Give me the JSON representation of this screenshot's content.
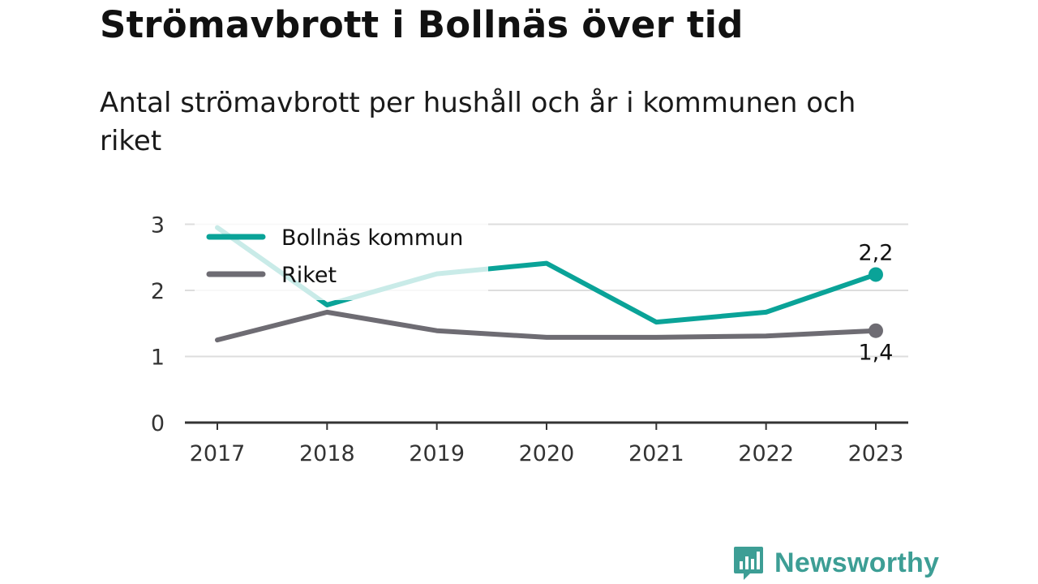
{
  "title": "Strömavbrott i Bollnäs över tid",
  "subtitle": "Antal strömavbrott per hushåll och år i kommunen och riket",
  "brand": {
    "name": "Newsworthy",
    "icon": "newsworthy-logo-icon",
    "color": "#3d9e95"
  },
  "chart_data": {
    "type": "line",
    "x": [
      "2017",
      "2018",
      "2019",
      "2020",
      "2021",
      "2022",
      "2023"
    ],
    "ylim": [
      0,
      3
    ],
    "yticks": [
      "0",
      "1",
      "2",
      "3"
    ],
    "grid": true,
    "legend_position": "top-left",
    "series": [
      {
        "name": "Bollnäs kommun",
        "color": "#0aa398",
        "faded_color": "#c9ebe8",
        "values": [
          2.95,
          1.78,
          2.25,
          2.41,
          1.52,
          1.67,
          2.24
        ]
      },
      {
        "name": "Riket",
        "color": "#6e6c73",
        "values": [
          1.25,
          1.67,
          1.39,
          1.29,
          1.29,
          1.31,
          1.39
        ]
      }
    ],
    "end_labels": [
      "2,2",
      "1,4"
    ]
  }
}
